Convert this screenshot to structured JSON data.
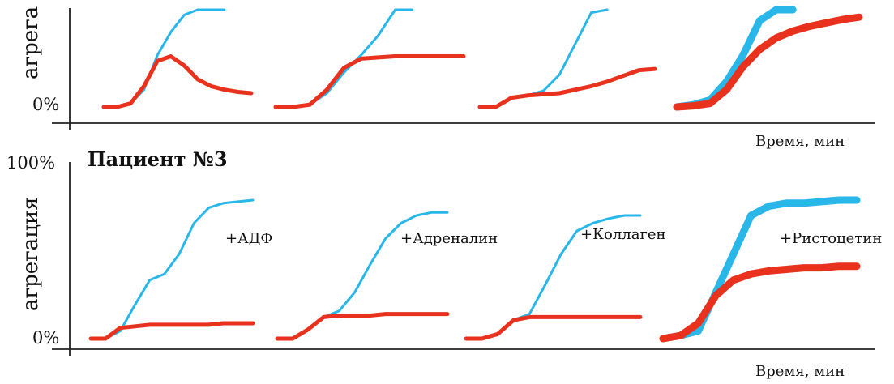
{
  "figure": {
    "top_ylabel_clipped": "агрега",
    "bottom_ylabel": "агрегация",
    "ytick_top": "100%",
    "ytick_zero_top": "0%",
    "ytick_zero_bottom": "0%",
    "xlabel_top": "Время, мин",
    "xlabel_bottom": "Время, мин",
    "panel_title": "Пациент №3",
    "series_colors": {
      "blue": "#29b6e8",
      "red": "#e8321e"
    },
    "agonists": [
      "+АДФ",
      "+Адреналин",
      "+Коллаген",
      "+Ристоцетин"
    ]
  },
  "chart_data": [
    {
      "type": "line",
      "title": "",
      "ylabel": "агрега",
      "xlabel": "Время, мин",
      "ylim": [
        0,
        100
      ],
      "note": "top panel clipped at top; values relative to same 0-100% scale",
      "curves": [
        {
          "agonist_index": 0,
          "t": [
            0,
            2,
            4,
            6,
            8,
            10,
            12,
            14,
            16,
            18,
            20,
            22
          ],
          "blue": [
            0,
            0,
            3,
            15,
            45,
            65,
            80,
            88,
            96,
            105,
            null,
            null
          ],
          "red": [
            0,
            0,
            3,
            18,
            40,
            44,
            36,
            24,
            18,
            15,
            13,
            12
          ]
        },
        {
          "agonist_index": 1,
          "t": [
            0,
            2,
            4,
            6,
            8,
            10,
            12,
            14,
            16,
            18,
            20,
            22
          ],
          "blue": [
            0,
            0,
            2,
            12,
            30,
            45,
            62,
            85,
            105,
            null,
            null,
            null
          ],
          "red": [
            0,
            0,
            2,
            15,
            34,
            42,
            43,
            44,
            44,
            44,
            44,
            44
          ]
        },
        {
          "agonist_index": 2,
          "t": [
            0,
            2,
            4,
            6,
            8,
            10,
            12,
            14,
            16,
            18,
            20,
            22
          ],
          "blue": [
            0,
            0,
            8,
            10,
            14,
            28,
            55,
            82,
            105,
            null,
            null,
            null
          ],
          "red": [
            0,
            0,
            8,
            10,
            11,
            12,
            15,
            18,
            22,
            27,
            32,
            33
          ]
        },
        {
          "agonist_index": 3,
          "t": [
            0,
            2,
            4,
            6,
            8,
            10,
            12,
            14,
            16,
            18,
            20,
            22
          ],
          "blue": [
            0,
            2,
            6,
            22,
            45,
            75,
            95,
            105,
            null,
            null,
            null,
            null
          ],
          "red": [
            0,
            1,
            3,
            15,
            35,
            50,
            60,
            66,
            70,
            73,
            76,
            78
          ]
        }
      ]
    },
    {
      "type": "line",
      "title": "Пациент №3",
      "ylabel": "агрегация",
      "xlabel": "Время, мин",
      "ylim": [
        0,
        100
      ],
      "curves": [
        {
          "agonist_index": 0,
          "t": [
            0,
            2,
            4,
            6,
            8,
            10,
            12,
            14,
            16,
            18,
            20,
            22
          ],
          "blue": [
            0,
            0,
            5,
            22,
            38,
            42,
            55,
            75,
            85,
            88,
            89,
            90
          ],
          "red": [
            0,
            0,
            7,
            8,
            9,
            9,
            9,
            9,
            9,
            10,
            10,
            10
          ]
        },
        {
          "agonist_index": 1,
          "t": [
            0,
            2,
            4,
            6,
            8,
            10,
            12,
            14,
            16,
            18,
            20,
            22
          ],
          "blue": [
            0,
            0,
            6,
            14,
            18,
            30,
            48,
            65,
            75,
            80,
            82,
            82
          ],
          "red": [
            0,
            0,
            6,
            14,
            15,
            15,
            15,
            16,
            16,
            16,
            16,
            16
          ]
        },
        {
          "agonist_index": 2,
          "t": [
            0,
            2,
            4,
            6,
            8,
            10,
            12,
            14,
            16,
            18,
            20,
            22
          ],
          "blue": [
            0,
            0,
            3,
            12,
            16,
            35,
            55,
            70,
            75,
            78,
            80,
            80
          ],
          "red": [
            0,
            0,
            3,
            12,
            14,
            14,
            14,
            14,
            14,
            14,
            14,
            14
          ]
        },
        {
          "agonist_index": 3,
          "t": [
            0,
            2,
            4,
            6,
            8,
            10,
            12,
            14,
            16,
            18,
            20,
            22
          ],
          "blue": [
            0,
            2,
            5,
            30,
            55,
            80,
            86,
            88,
            88,
            89,
            90,
            90
          ],
          "red": [
            0,
            2,
            10,
            28,
            38,
            42,
            44,
            45,
            46,
            46,
            47,
            47
          ]
        }
      ]
    }
  ]
}
